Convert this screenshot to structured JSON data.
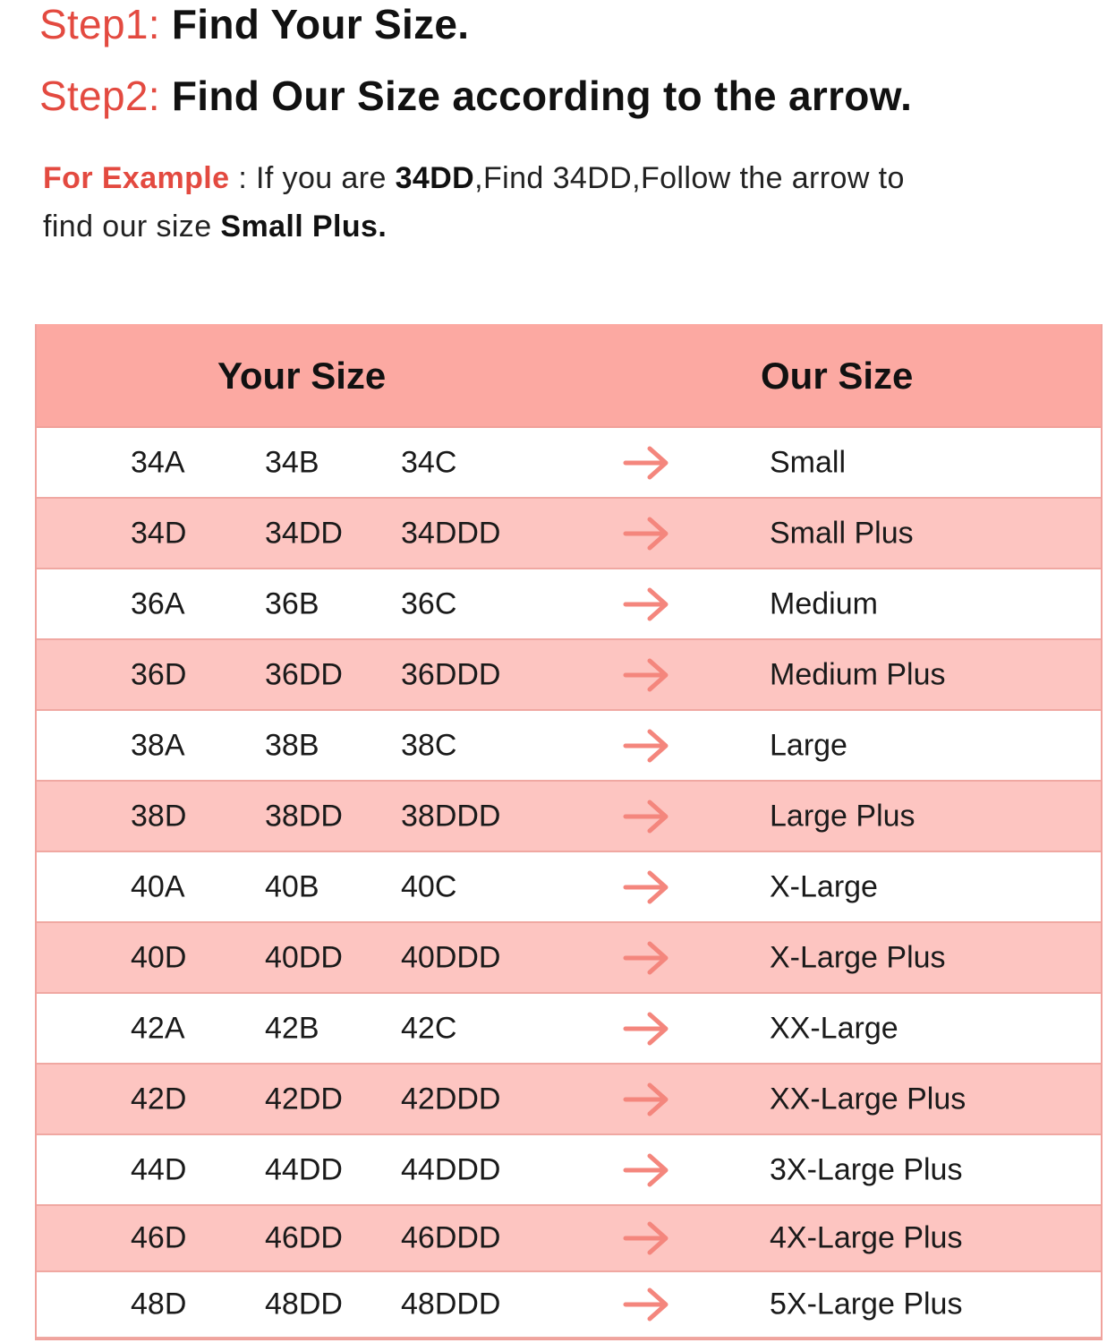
{
  "step1": {
    "label": "Step1:",
    "text": "Find Your Size."
  },
  "step2": {
    "label": "Step2:",
    "text": "Find Our Size according to the arrow."
  },
  "example": {
    "label": "For Example",
    "sep": " : If you are ",
    "size": "34DD",
    "mid": ",Find 34DD,Follow the arrow to",
    "line2_pre": "find our size ",
    "result": "Small Plus."
  },
  "table": {
    "header_your": "Your Size",
    "header_our": "Our Size",
    "accent_color": "#f4867d",
    "header_bg": "#fca9a2",
    "alt_row_bg": "#fdc5c1",
    "arrow_icon": "right-arrow",
    "rows": [
      {
        "your": [
          "34A",
          "34B",
          "34C"
        ],
        "our": "Small"
      },
      {
        "your": [
          "34D",
          "34DD",
          "34DDD"
        ],
        "our": "Small Plus"
      },
      {
        "your": [
          "36A",
          "36B",
          "36C"
        ],
        "our": "Medium"
      },
      {
        "your": [
          "36D",
          "36DD",
          "36DDD"
        ],
        "our": "Medium Plus"
      },
      {
        "your": [
          "38A",
          "38B",
          "38C"
        ],
        "our": "Large"
      },
      {
        "your": [
          "38D",
          "38DD",
          "38DDD"
        ],
        "our": "Large Plus"
      },
      {
        "your": [
          "40A",
          "40B",
          "40C"
        ],
        "our": "X-Large"
      },
      {
        "your": [
          "40D",
          "40DD",
          "40DDD"
        ],
        "our": "X-Large Plus"
      },
      {
        "your": [
          "42A",
          "42B",
          "42C"
        ],
        "our": "XX-Large"
      },
      {
        "your": [
          "42D",
          "42DD",
          "42DDD"
        ],
        "our": "XX-Large Plus"
      },
      {
        "your": [
          "44D",
          "44DD",
          "44DDD"
        ],
        "our": "3X-Large Plus"
      },
      {
        "your": [
          "46D",
          "46DD",
          "46DDD"
        ],
        "our": "4X-Large Plus"
      },
      {
        "your": [
          "48D",
          "48DD",
          "48DDD"
        ],
        "our": "5X-Large Plus"
      }
    ]
  }
}
